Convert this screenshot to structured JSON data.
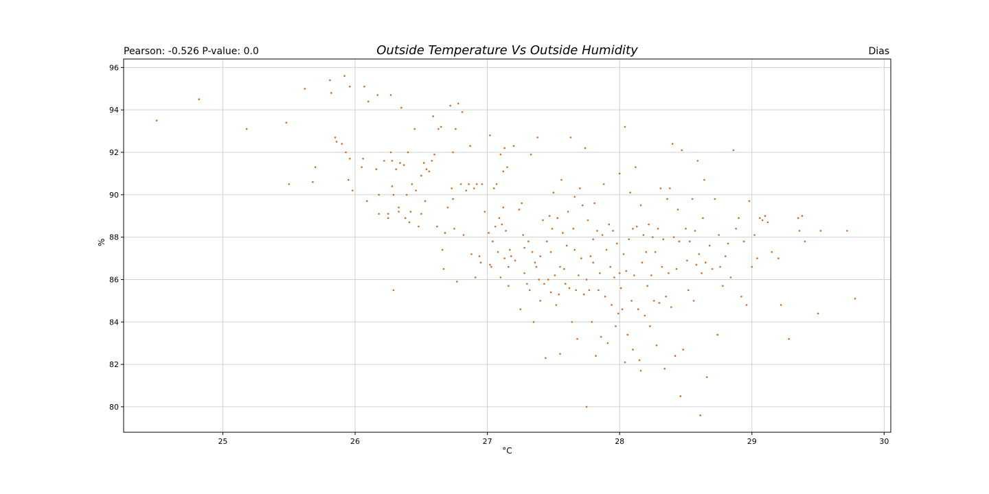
{
  "chart_data": {
    "type": "scatter",
    "title": "Outside Temperature Vs Outside Humidity",
    "title_left": "Pearson: -0.526 P-value: 0.0",
    "title_right": "Dias",
    "xlabel": "°C",
    "ylabel": "%",
    "xlim": [
      24.25,
      30.05
    ],
    "ylim": [
      78.8,
      96.4
    ],
    "xticks": [
      25,
      26,
      27,
      28,
      29,
      30
    ],
    "yticks": [
      80,
      82,
      84,
      86,
      88,
      90,
      92,
      94,
      96
    ],
    "grid": true,
    "marker_color": "#d2691e",
    "points": [
      [
        24.5,
        93.5
      ],
      [
        24.82,
        94.5
      ],
      [
        25.18,
        93.1
      ],
      [
        25.48,
        93.4
      ],
      [
        25.5,
        90.5
      ],
      [
        25.62,
        95.0
      ],
      [
        25.68,
        90.6
      ],
      [
        25.7,
        91.3
      ],
      [
        25.81,
        95.4
      ],
      [
        25.82,
        94.8
      ],
      [
        25.85,
        92.7
      ],
      [
        25.86,
        92.5
      ],
      [
        25.9,
        92.4
      ],
      [
        25.92,
        95.6
      ],
      [
        25.93,
        92.0
      ],
      [
        25.95,
        90.7
      ],
      [
        25.96,
        91.7
      ],
      [
        25.96,
        95.1
      ],
      [
        25.98,
        90.2
      ],
      [
        26.05,
        91.3
      ],
      [
        26.06,
        91.7
      ],
      [
        26.07,
        95.1
      ],
      [
        26.09,
        89.7
      ],
      [
        26.1,
        94.4
      ],
      [
        26.16,
        91.2
      ],
      [
        26.17,
        94.7
      ],
      [
        26.18,
        89.1
      ],
      [
        26.18,
        90.0
      ],
      [
        26.22,
        91.6
      ],
      [
        26.25,
        88.9
      ],
      [
        26.25,
        89.1
      ],
      [
        26.27,
        92.0
      ],
      [
        26.27,
        94.7
      ],
      [
        26.28,
        90.4
      ],
      [
        26.28,
        91.6
      ],
      [
        26.29,
        90.0
      ],
      [
        26.29,
        85.5
      ],
      [
        26.31,
        91.2
      ],
      [
        26.33,
        89.2
      ],
      [
        26.33,
        89.4
      ],
      [
        26.34,
        91.5
      ],
      [
        26.35,
        94.1
      ],
      [
        26.37,
        91.4
      ],
      [
        26.38,
        88.9
      ],
      [
        26.39,
        90.0
      ],
      [
        26.4,
        92.0
      ],
      [
        26.41,
        88.7
      ],
      [
        26.42,
        89.2
      ],
      [
        26.43,
        90.5
      ],
      [
        26.45,
        93.1
      ],
      [
        26.46,
        90.2
      ],
      [
        26.48,
        88.5
      ],
      [
        26.5,
        90.9
      ],
      [
        26.5,
        89.1
      ],
      [
        26.52,
        91.5
      ],
      [
        26.53,
        89.7
      ],
      [
        26.54,
        91.2
      ],
      [
        26.56,
        91.1
      ],
      [
        26.58,
        91.6
      ],
      [
        26.59,
        93.7
      ],
      [
        26.6,
        91.9
      ],
      [
        26.62,
        88.5
      ],
      [
        26.63,
        93.1
      ],
      [
        26.65,
        93.2
      ],
      [
        26.66,
        87.4
      ],
      [
        26.67,
        86.5
      ],
      [
        26.68,
        88.2
      ],
      [
        26.7,
        89.4
      ],
      [
        26.72,
        94.2
      ],
      [
        26.73,
        90.3
      ],
      [
        26.74,
        92.0
      ],
      [
        26.74,
        89.8
      ],
      [
        26.75,
        88.4
      ],
      [
        26.76,
        93.1
      ],
      [
        26.77,
        85.9
      ],
      [
        26.78,
        94.3
      ],
      [
        26.8,
        90.5
      ],
      [
        26.81,
        93.9
      ],
      [
        26.82,
        88.1
      ],
      [
        26.84,
        90.2
      ],
      [
        26.86,
        90.5
      ],
      [
        26.87,
        92.3
      ],
      [
        26.88,
        87.2
      ],
      [
        26.9,
        90.3
      ],
      [
        26.91,
        86.1
      ],
      [
        26.92,
        90.5
      ],
      [
        26.94,
        87.1
      ],
      [
        26.95,
        86.8
      ],
      [
        26.96,
        90.5
      ],
      [
        26.98,
        89.2
      ],
      [
        27.01,
        88.2
      ],
      [
        27.02,
        86.7
      ],
      [
        27.02,
        92.8
      ],
      [
        27.03,
        86.6
      ],
      [
        27.04,
        87.8
      ],
      [
        27.05,
        90.3
      ],
      [
        27.06,
        88.5
      ],
      [
        27.07,
        90.5
      ],
      [
        27.08,
        87.3
      ],
      [
        27.09,
        88.9
      ],
      [
        27.1,
        91.9
      ],
      [
        27.1,
        86.1
      ],
      [
        27.11,
        88.6
      ],
      [
        27.12,
        91.1
      ],
      [
        27.12,
        89.4
      ],
      [
        27.13,
        87.0
      ],
      [
        27.13,
        92.2
      ],
      [
        27.14,
        88.3
      ],
      [
        27.15,
        91.3
      ],
      [
        27.16,
        86.6
      ],
      [
        27.16,
        85.7
      ],
      [
        27.17,
        87.4
      ],
      [
        27.18,
        87.1
      ],
      [
        27.2,
        92.3
      ],
      [
        27.21,
        86.9
      ],
      [
        27.24,
        89.3
      ],
      [
        27.25,
        84.6
      ],
      [
        27.26,
        89.6
      ],
      [
        27.27,
        88.1
      ],
      [
        27.28,
        86.3
      ],
      [
        27.28,
        87.5
      ],
      [
        27.3,
        85.8
      ],
      [
        27.31,
        87.8
      ],
      [
        27.32,
        85.5
      ],
      [
        27.33,
        91.9
      ],
      [
        27.34,
        87.3
      ],
      [
        27.35,
        84.0
      ],
      [
        27.36,
        86.8
      ],
      [
        27.37,
        86.6
      ],
      [
        27.38,
        92.7
      ],
      [
        27.39,
        86.0
      ],
      [
        27.4,
        85.0
      ],
      [
        27.4,
        87.1
      ],
      [
        27.42,
        88.8
      ],
      [
        27.43,
        85.8
      ],
      [
        27.44,
        82.3
      ],
      [
        27.45,
        87.8
      ],
      [
        27.46,
        86.0
      ],
      [
        27.47,
        89.0
      ],
      [
        27.48,
        85.4
      ],
      [
        27.48,
        87.3
      ],
      [
        27.49,
        88.4
      ],
      [
        27.5,
        90.1
      ],
      [
        27.51,
        86.2
      ],
      [
        27.52,
        84.8
      ],
      [
        27.53,
        88.9
      ],
      [
        27.54,
        85.3
      ],
      [
        27.55,
        82.5
      ],
      [
        27.55,
        86.6
      ],
      [
        27.56,
        90.7
      ],
      [
        27.57,
        88.2
      ],
      [
        27.58,
        86.5
      ],
      [
        27.59,
        85.8
      ],
      [
        27.6,
        87.6
      ],
      [
        27.61,
        89.2
      ],
      [
        27.62,
        85.6
      ],
      [
        27.63,
        92.7
      ],
      [
        27.64,
        84.0
      ],
      [
        27.65,
        88.4
      ],
      [
        27.66,
        87.4
      ],
      [
        27.66,
        89.9
      ],
      [
        27.67,
        85.5
      ],
      [
        27.68,
        83.2
      ],
      [
        27.69,
        86.2
      ],
      [
        27.7,
        90.3
      ],
      [
        27.71,
        87.0
      ],
      [
        27.72,
        89.5
      ],
      [
        27.73,
        85.3
      ],
      [
        27.74,
        92.2
      ],
      [
        27.75,
        86.0
      ],
      [
        27.75,
        80.0
      ],
      [
        27.76,
        88.8
      ],
      [
        27.77,
        85.5
      ],
      [
        27.78,
        87.1
      ],
      [
        27.79,
        84.0
      ],
      [
        27.8,
        87.9
      ],
      [
        27.8,
        86.8
      ],
      [
        27.81,
        89.6
      ],
      [
        27.82,
        82.4
      ],
      [
        27.83,
        88.3
      ],
      [
        27.84,
        85.5
      ],
      [
        27.85,
        86.3
      ],
      [
        27.86,
        83.3
      ],
      [
        27.87,
        88.1
      ],
      [
        27.88,
        90.5
      ],
      [
        27.89,
        85.2
      ],
      [
        27.9,
        87.4
      ],
      [
        27.91,
        83.0
      ],
      [
        27.92,
        88.6
      ],
      [
        27.93,
        86.6
      ],
      [
        27.94,
        84.8
      ],
      [
        27.95,
        88.3
      ],
      [
        27.96,
        86.1
      ],
      [
        27.97,
        83.8
      ],
      [
        27.98,
        87.7
      ],
      [
        27.99,
        84.4
      ],
      [
        28.0,
        91.0
      ],
      [
        28.0,
        86.3
      ],
      [
        28.01,
        85.6
      ],
      [
        28.02,
        84.6
      ],
      [
        28.03,
        87.2
      ],
      [
        28.04,
        82.1
      ],
      [
        28.04,
        93.2
      ],
      [
        28.05,
        86.4
      ],
      [
        28.06,
        83.4
      ],
      [
        28.07,
        87.9
      ],
      [
        28.08,
        90.1
      ],
      [
        28.09,
        85.0
      ],
      [
        28.1,
        88.4
      ],
      [
        28.1,
        82.7
      ],
      [
        28.11,
        86.2
      ],
      [
        28.12,
        91.3
      ],
      [
        28.13,
        88.5
      ],
      [
        28.14,
        84.6
      ],
      [
        28.15,
        82.2
      ],
      [
        28.16,
        89.5
      ],
      [
        28.16,
        81.7
      ],
      [
        28.17,
        86.8
      ],
      [
        28.18,
        88.1
      ],
      [
        28.19,
        84.3
      ],
      [
        28.2,
        87.3
      ],
      [
        28.21,
        85.7
      ],
      [
        28.22,
        88.6
      ],
      [
        28.23,
        83.8
      ],
      [
        28.24,
        86.2
      ],
      [
        28.25,
        88.0
      ],
      [
        28.26,
        85.0
      ],
      [
        28.27,
        87.3
      ],
      [
        28.28,
        82.9
      ],
      [
        28.29,
        88.4
      ],
      [
        28.3,
        84.9
      ],
      [
        28.31,
        90.3
      ],
      [
        28.32,
        86.6
      ],
      [
        28.33,
        87.9
      ],
      [
        28.34,
        81.8
      ],
      [
        28.35,
        85.2
      ],
      [
        28.36,
        89.8
      ],
      [
        28.37,
        86.3
      ],
      [
        28.38,
        90.3
      ],
      [
        28.39,
        84.7
      ],
      [
        28.4,
        92.4
      ],
      [
        28.41,
        88.0
      ],
      [
        28.42,
        82.4
      ],
      [
        28.43,
        86.5
      ],
      [
        28.44,
        89.3
      ],
      [
        28.45,
        87.8
      ],
      [
        28.46,
        80.5
      ],
      [
        28.47,
        92.1
      ],
      [
        28.48,
        82.7
      ],
      [
        28.5,
        88.4
      ],
      [
        28.51,
        86.9
      ],
      [
        28.52,
        85.5
      ],
      [
        28.53,
        87.8
      ],
      [
        28.55,
        89.8
      ],
      [
        28.56,
        85.0
      ],
      [
        28.57,
        88.3
      ],
      [
        28.58,
        86.7
      ],
      [
        28.59,
        91.6
      ],
      [
        28.6,
        87.2
      ],
      [
        28.61,
        79.6
      ],
      [
        28.62,
        86.3
      ],
      [
        28.63,
        88.9
      ],
      [
        28.64,
        90.7
      ],
      [
        28.65,
        86.8
      ],
      [
        28.66,
        81.4
      ],
      [
        28.68,
        87.6
      ],
      [
        28.7,
        86.5
      ],
      [
        28.72,
        89.8
      ],
      [
        28.74,
        83.4
      ],
      [
        28.75,
        88.1
      ],
      [
        28.76,
        86.6
      ],
      [
        28.78,
        85.7
      ],
      [
        28.8,
        87.1
      ],
      [
        28.82,
        87.7
      ],
      [
        28.84,
        86.1
      ],
      [
        28.86,
        92.1
      ],
      [
        28.88,
        88.4
      ],
      [
        28.9,
        88.9
      ],
      [
        28.92,
        85.2
      ],
      [
        28.94,
        87.8
      ],
      [
        28.96,
        84.8
      ],
      [
        28.98,
        89.7
      ],
      [
        29.0,
        86.6
      ],
      [
        29.02,
        88.1
      ],
      [
        29.04,
        87.0
      ],
      [
        29.06,
        88.9
      ],
      [
        29.08,
        88.8
      ],
      [
        29.1,
        89.0
      ],
      [
        29.12,
        88.7
      ],
      [
        29.15,
        87.3
      ],
      [
        29.2,
        87.0
      ],
      [
        29.22,
        84.8
      ],
      [
        29.28,
        83.2
      ],
      [
        29.35,
        88.9
      ],
      [
        29.36,
        88.3
      ],
      [
        29.38,
        89.0
      ],
      [
        29.4,
        87.8
      ],
      [
        29.5,
        84.4
      ],
      [
        29.52,
        88.3
      ],
      [
        29.72,
        88.3
      ],
      [
        29.78,
        85.1
      ]
    ]
  }
}
